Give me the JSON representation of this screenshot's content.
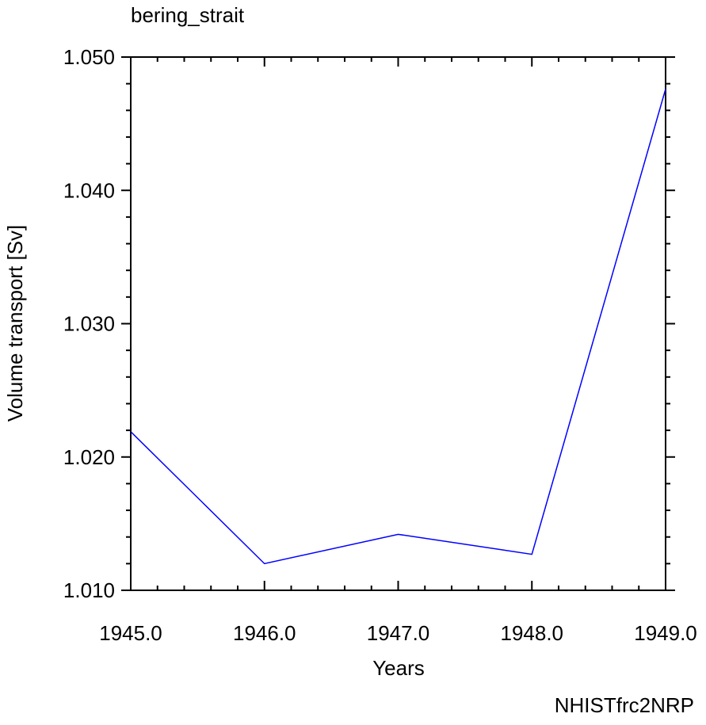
{
  "chart_data": {
    "type": "line",
    "title": "bering_strait",
    "xlabel": "Years",
    "ylabel": "Volume transport [Sv]",
    "annotation": "NHISTfrc2NRP",
    "annotation_color": "#0000ff",
    "x": [
      1945,
      1946,
      1947,
      1948,
      1949
    ],
    "series": [
      {
        "name": "NHISTfrc2NRP",
        "color": "#0000ff",
        "values": [
          1.0219,
          1.012,
          1.0142,
          1.0127,
          1.0476
        ]
      }
    ],
    "xlim": [
      1945,
      1949
    ],
    "xticks": [
      {
        "value": 1945,
        "label": "1945.0"
      },
      {
        "value": 1946,
        "label": "1946.0"
      },
      {
        "value": 1947,
        "label": "1947.0"
      },
      {
        "value": 1948,
        "label": "1948.0"
      },
      {
        "value": 1949,
        "label": "1949.0"
      }
    ],
    "ylim": [
      1.01,
      1.05
    ],
    "yticks": [
      {
        "value": 1.01,
        "label": "1.010"
      },
      {
        "value": 1.02,
        "label": "1.020"
      },
      {
        "value": 1.03,
        "label": "1.030"
      },
      {
        "value": 1.04,
        "label": "1.040"
      },
      {
        "value": 1.05,
        "label": "1.050"
      }
    ],
    "minor_ticks": 4,
    "grid": false
  }
}
